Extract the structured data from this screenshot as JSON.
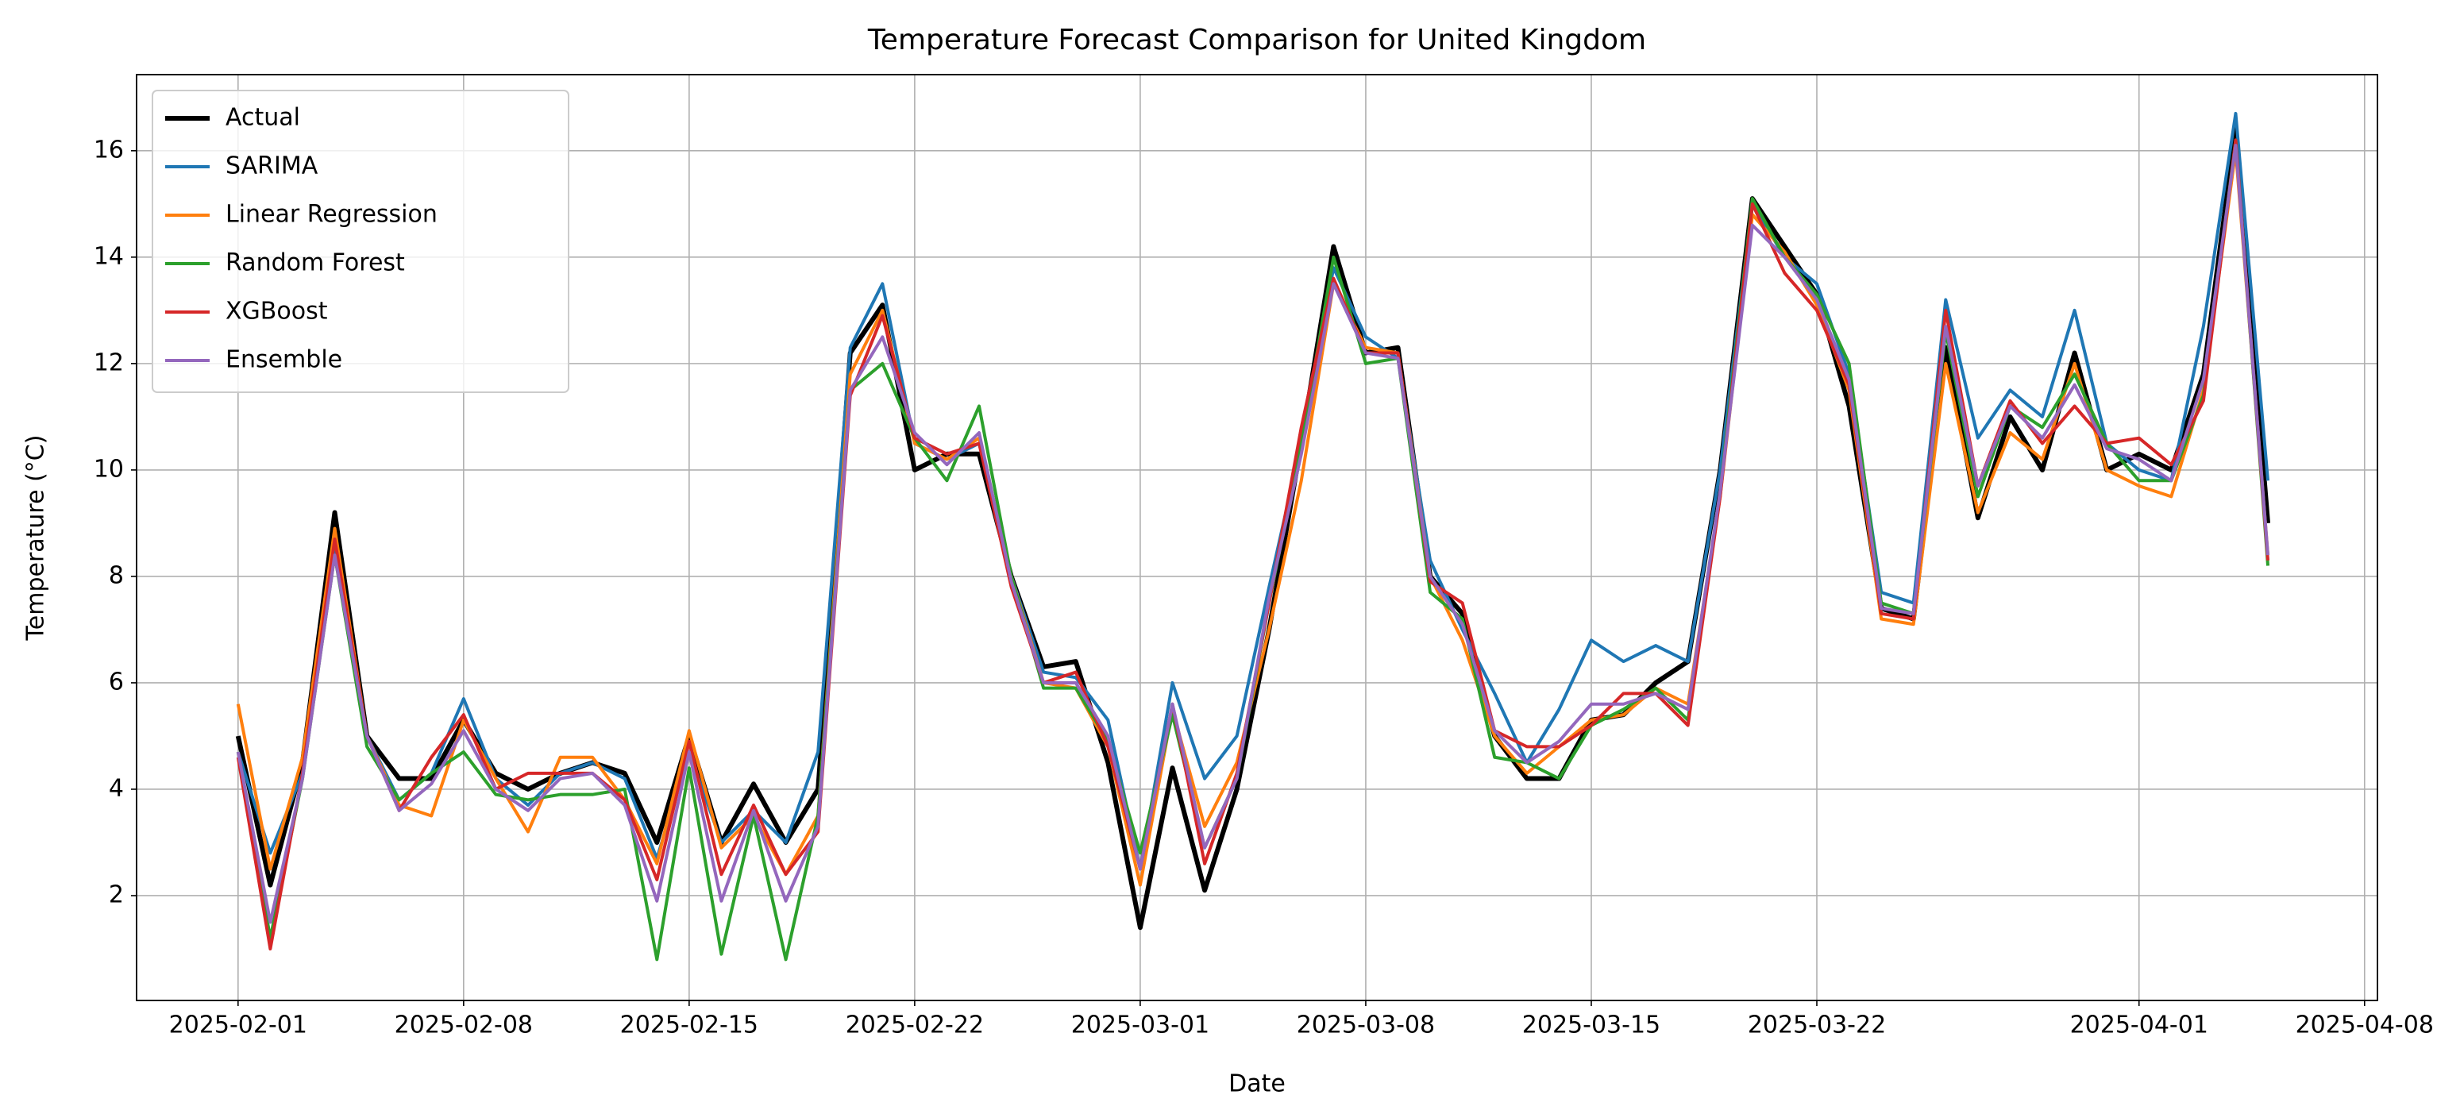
{
  "chart_data": {
    "type": "line",
    "title": "Temperature Forecast Comparison for United Kingdom",
    "xlabel": "Date",
    "ylabel": "Temperature (°C)",
    "x": [
      "2025-02-01",
      "2025-02-02",
      "2025-02-03",
      "2025-02-04",
      "2025-02-05",
      "2025-02-06",
      "2025-02-07",
      "2025-02-08",
      "2025-02-09",
      "2025-02-10",
      "2025-02-11",
      "2025-02-12",
      "2025-02-13",
      "2025-02-14",
      "2025-02-15",
      "2025-02-16",
      "2025-02-17",
      "2025-02-18",
      "2025-02-19",
      "2025-02-20",
      "2025-02-21",
      "2025-02-22",
      "2025-02-23",
      "2025-02-24",
      "2025-02-25",
      "2025-02-26",
      "2025-02-27",
      "2025-02-28",
      "2025-03-01",
      "2025-03-02",
      "2025-03-03",
      "2025-03-04",
      "2025-03-05",
      "2025-03-06",
      "2025-03-07",
      "2025-03-08",
      "2025-03-09",
      "2025-03-10",
      "2025-03-11",
      "2025-03-12",
      "2025-03-13",
      "2025-03-14",
      "2025-03-15",
      "2025-03-16",
      "2025-03-17",
      "2025-03-18",
      "2025-03-19",
      "2025-03-20",
      "2025-03-21",
      "2025-03-22",
      "2025-03-23",
      "2025-03-24",
      "2025-03-25",
      "2025-03-26",
      "2025-03-27",
      "2025-03-28",
      "2025-03-29",
      "2025-03-30",
      "2025-03-31",
      "2025-04-01",
      "2025-04-02",
      "2025-04-03",
      "2025-04-04",
      "2025-04-05"
    ],
    "series": [
      {
        "name": "Actual",
        "color": "#000000",
        "width": 6,
        "values": [
          5.0,
          2.2,
          4.5,
          9.2,
          5.0,
          4.2,
          4.2,
          5.3,
          4.3,
          4.0,
          4.3,
          4.5,
          4.3,
          3.0,
          5.0,
          3.0,
          4.1,
          3.0,
          4.0,
          12.2,
          13.1,
          10.0,
          10.3,
          10.3,
          8.0,
          6.3,
          6.4,
          4.5,
          1.4,
          4.4,
          2.1,
          4.0,
          7.0,
          10.5,
          14.2,
          12.2,
          12.3,
          8.0,
          7.3,
          5.0,
          4.2,
          4.2,
          5.3,
          5.4,
          6.0,
          6.4,
          10.0,
          15.1,
          14.2,
          13.3,
          11.2,
          7.4,
          7.2,
          12.3,
          9.1,
          11.0,
          10.0,
          12.2,
          10.0,
          10.3,
          10.0,
          11.8,
          16.4,
          9.0
        ]
      },
      {
        "name": "SARIMA",
        "color": "#1f77b4",
        "width": 4,
        "values": [
          4.7,
          2.8,
          4.3,
          8.5,
          5.0,
          3.8,
          4.3,
          5.7,
          4.2,
          3.7,
          4.3,
          4.5,
          4.2,
          2.7,
          4.7,
          3.0,
          3.6,
          3.0,
          4.7,
          12.3,
          13.5,
          10.5,
          10.2,
          10.5,
          8.0,
          6.2,
          6.1,
          5.3,
          2.5,
          6.0,
          4.2,
          5.0,
          7.8,
          10.5,
          13.8,
          12.5,
          12.1,
          8.3,
          7.0,
          5.8,
          4.5,
          5.5,
          6.8,
          6.4,
          6.7,
          6.4,
          10.0,
          15.0,
          14.0,
          13.5,
          11.8,
          7.7,
          7.5,
          13.2,
          10.6,
          11.5,
          11.0,
          13.0,
          10.5,
          10.0,
          9.8,
          12.7,
          16.7,
          9.8
        ]
      },
      {
        "name": "Linear Regression",
        "color": "#ff7f0e",
        "width": 4,
        "values": [
          5.6,
          2.5,
          4.6,
          8.9,
          5.0,
          3.7,
          3.5,
          5.3,
          4.2,
          3.2,
          4.6,
          4.6,
          3.8,
          2.6,
          5.1,
          2.9,
          3.5,
          2.4,
          3.5,
          11.8,
          13.0,
          10.5,
          10.2,
          10.6,
          8.0,
          6.0,
          5.9,
          4.8,
          2.2,
          5.5,
          3.3,
          4.5,
          7.0,
          9.8,
          13.5,
          12.3,
          12.2,
          8.0,
          6.8,
          5.0,
          4.3,
          4.8,
          5.3,
          5.4,
          5.9,
          5.6,
          9.5,
          14.8,
          14.1,
          13.1,
          11.5,
          7.2,
          7.1,
          12.0,
          9.2,
          10.7,
          10.2,
          12.0,
          10.0,
          9.7,
          9.5,
          11.5,
          16.0,
          8.4
        ]
      },
      {
        "name": "Random Forest",
        "color": "#2ca02c",
        "width": 4,
        "values": [
          4.7,
          1.2,
          4.2,
          8.4,
          4.8,
          3.8,
          4.3,
          4.7,
          3.9,
          3.8,
          3.9,
          3.9,
          4.0,
          0.8,
          4.4,
          0.9,
          3.5,
          0.8,
          3.5,
          11.5,
          12.0,
          10.6,
          9.8,
          11.2,
          8.0,
          5.9,
          5.9,
          4.9,
          2.8,
          5.4,
          2.9,
          4.2,
          7.5,
          10.5,
          14.0,
          12.0,
          12.1,
          7.7,
          7.2,
          4.6,
          4.5,
          4.2,
          5.2,
          5.5,
          5.9,
          5.3,
          9.6,
          15.1,
          14.0,
          13.3,
          12.0,
          7.5,
          7.3,
          12.6,
          9.5,
          11.2,
          10.8,
          11.8,
          10.5,
          9.8,
          9.8,
          11.4,
          16.2,
          8.2
        ]
      },
      {
        "name": "XGBoost",
        "color": "#d62728",
        "width": 4,
        "values": [
          4.6,
          1.0,
          4.3,
          8.7,
          5.0,
          3.6,
          4.6,
          5.4,
          4.0,
          4.3,
          4.3,
          4.3,
          3.8,
          2.3,
          4.9,
          2.4,
          3.7,
          2.4,
          3.2,
          11.4,
          12.9,
          10.6,
          10.3,
          10.5,
          7.8,
          6.0,
          6.2,
          4.8,
          2.5,
          5.6,
          2.6,
          4.3,
          7.5,
          10.8,
          13.6,
          12.2,
          12.2,
          7.9,
          7.5,
          5.1,
          4.8,
          4.8,
          5.2,
          5.8,
          5.8,
          5.2,
          9.5,
          15.0,
          13.7,
          13.0,
          11.6,
          7.3,
          7.2,
          13.0,
          9.7,
          11.3,
          10.5,
          11.2,
          10.5,
          10.6,
          10.1,
          11.3,
          16.2,
          8.3
        ]
      },
      {
        "name": "Ensemble",
        "color": "#9467bd",
        "width": 4,
        "values": [
          4.7,
          1.5,
          4.2,
          8.4,
          5.0,
          3.6,
          4.1,
          5.1,
          4.0,
          3.6,
          4.2,
          4.3,
          3.7,
          1.9,
          4.7,
          1.9,
          3.6,
          1.9,
          3.3,
          11.5,
          12.5,
          10.7,
          10.1,
          10.7,
          7.9,
          6.0,
          6.0,
          5.0,
          2.5,
          5.6,
          2.9,
          4.2,
          7.6,
          10.3,
          13.5,
          12.2,
          12.1,
          8.0,
          7.1,
          5.1,
          4.5,
          4.9,
          5.6,
          5.6,
          5.8,
          5.5,
          9.6,
          14.6,
          14.0,
          13.2,
          11.7,
          7.4,
          7.3,
          12.7,
          9.7,
          11.2,
          10.6,
          11.6,
          10.4,
          10.2,
          9.8,
          11.7,
          16.1,
          8.4
        ]
      }
    ],
    "xlim": [
      "2025-01-28T20:24Z",
      "2025-04-08T09:36Z"
    ],
    "xticks": [
      "2025-02-01",
      "2025-02-08",
      "2025-02-15",
      "2025-02-22",
      "2025-03-01",
      "2025-03-08",
      "2025-03-15",
      "2025-03-22",
      "2025-04-01",
      "2025-04-08"
    ],
    "ylim": [
      0.03,
      17.43
    ],
    "yticks": [
      2,
      4,
      6,
      8,
      10,
      12,
      14,
      16
    ],
    "grid": true,
    "legend": "upper left"
  }
}
